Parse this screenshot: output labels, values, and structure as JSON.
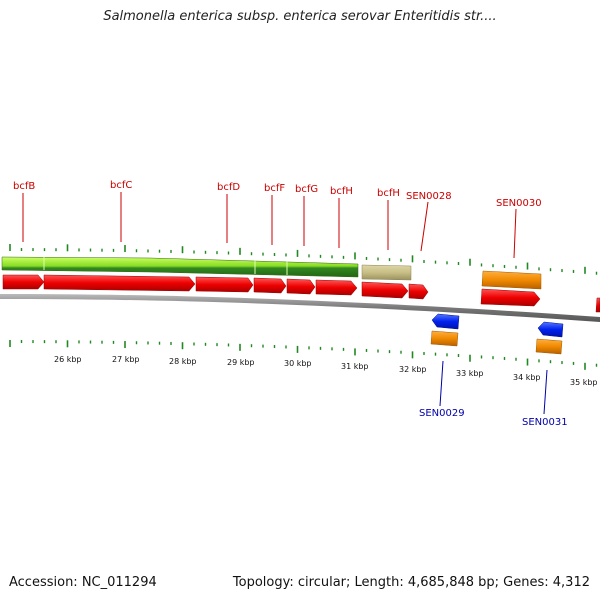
{
  "title": "Salmonella enterica subsp. enterica serovar Enteritidis str....",
  "footer": {
    "accession": "Accession: NC_011294",
    "summary": "Topology: circular; Length: 4,685,848 bp; Genes: 4,312"
  },
  "colors": {
    "gene_red": "#ee0000",
    "gene_orange": "#f08a00",
    "gene_blue": "#0022ee",
    "gene_tan": "#c8bf85",
    "pathway_green": "#66cc22",
    "label_red": "#cc0000",
    "label_blue": "#0000aa",
    "tick_green": "#228822",
    "backbone_gray": "#888888"
  },
  "kbp_labels": [
    "26 kbp",
    "27 kbp",
    "28 kbp",
    "29 kbp",
    "30 kbp",
    "31 kbp",
    "32 kbp",
    "33 kbp",
    "34 kbp",
    "35 kbp"
  ],
  "gene_labels": {
    "bcfB": "bcfB",
    "bcfC": "bcfC",
    "bcfD": "bcfD",
    "bcfF": "bcfF",
    "bcfG": "bcfG",
    "bcfH": "bcfH",
    "SEN0028": "SEN0028",
    "SEN0030": "SEN0030",
    "SEN0029": "SEN0029",
    "SEN0031": "SEN0031"
  }
}
